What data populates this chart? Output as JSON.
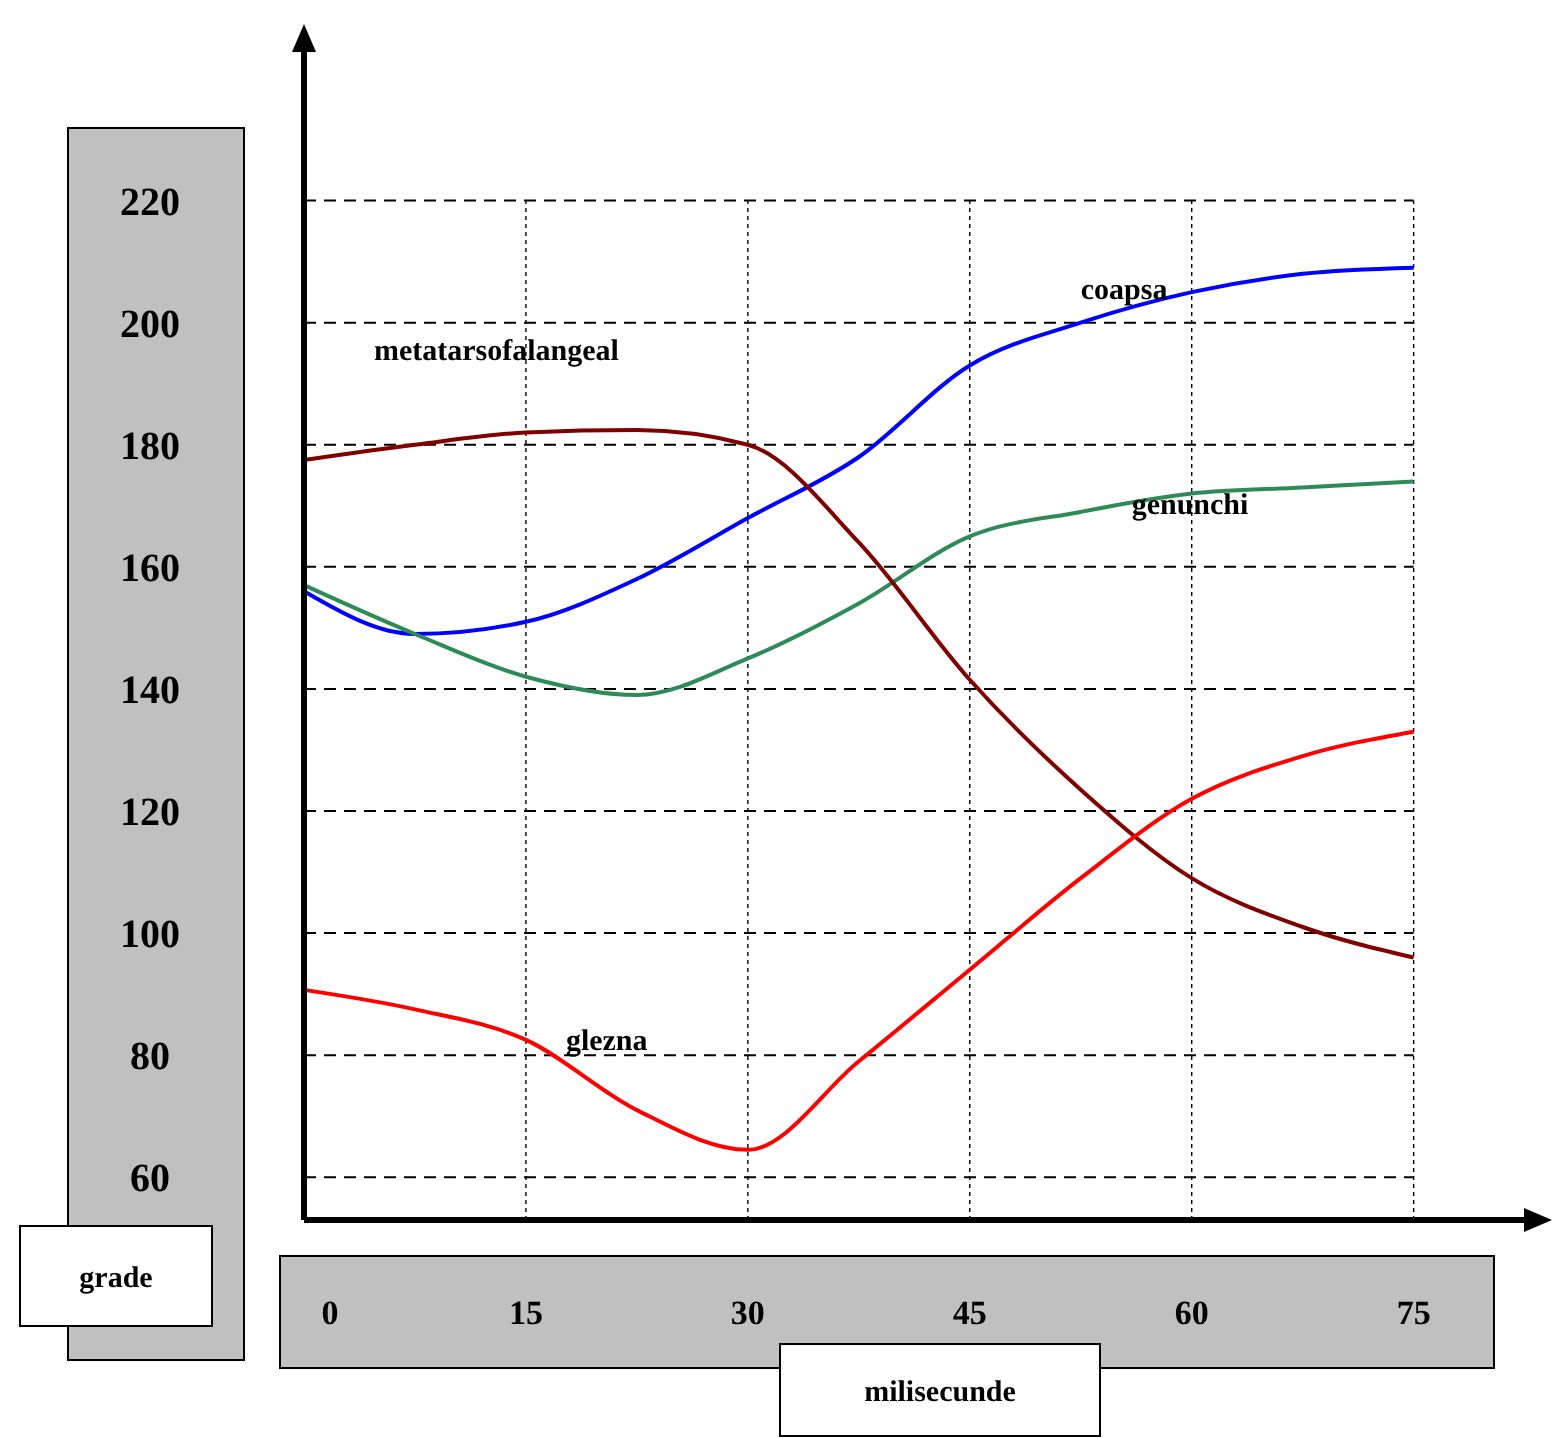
{
  "chart_data": {
    "type": "line",
    "xlabel": "milisecunde",
    "ylabel": "grade",
    "x": [
      0,
      7.5,
      15,
      22.5,
      30,
      37.5,
      45,
      52.5,
      60,
      67.5,
      75
    ],
    "xlim": [
      0,
      83
    ],
    "xticks": [
      0,
      15,
      30,
      45,
      60,
      75
    ],
    "ylim": [
      53,
      245
    ],
    "yticks": [
      60,
      80,
      100,
      120,
      140,
      160,
      180,
      200,
      220
    ],
    "grid": true,
    "series": [
      {
        "name": "coapsa",
        "color": "#0000ff",
        "values": [
          156,
          149,
          151,
          158,
          168,
          178,
          193,
          200,
          205,
          208,
          209
        ]
      },
      {
        "name": "genunchi",
        "color": "#2e8b57",
        "values": [
          157,
          149,
          142,
          139,
          145,
          154,
          165,
          169,
          172,
          173,
          174
        ]
      },
      {
        "name": "metatarsofalangeal",
        "color": "#800000",
        "values": [
          177.5,
          180,
          182,
          182.4,
          180,
          164,
          141.5,
          123.5,
          109,
          101,
          96
        ]
      },
      {
        "name": "glezna",
        "color": "#ff0000",
        "values": [
          90.7,
          87.5,
          82.5,
          71,
          64.5,
          79,
          94,
          109,
          122,
          129,
          133
        ]
      }
    ]
  }
}
